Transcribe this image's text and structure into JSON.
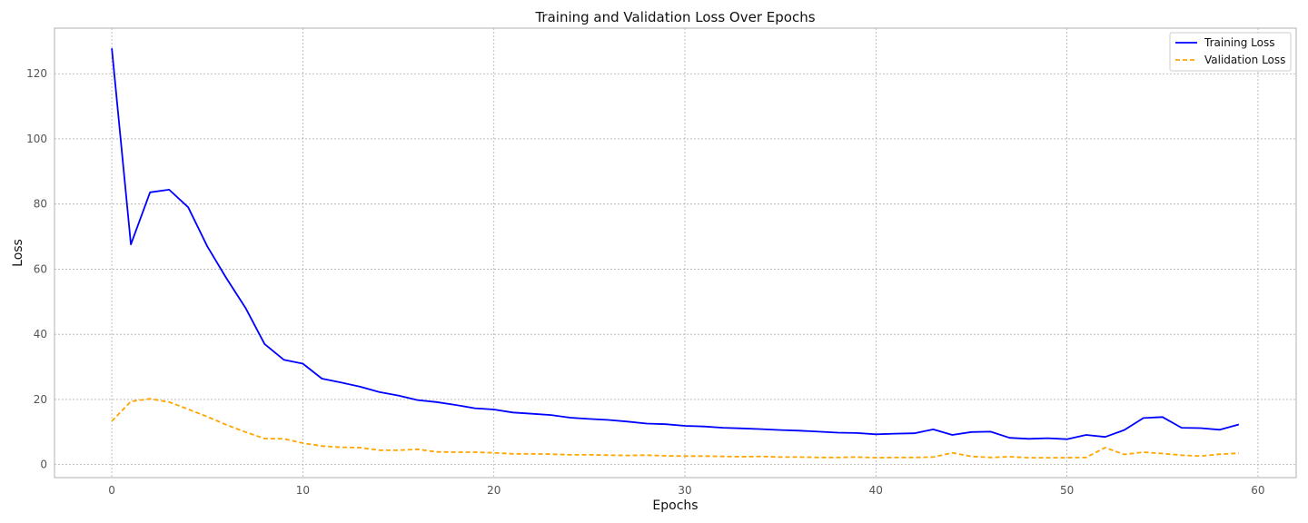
{
  "chart_data": {
    "type": "line",
    "title": "Training and Validation Loss Over Epochs",
    "xlabel": "Epochs",
    "ylabel": "Loss",
    "xlim": [
      -3,
      62
    ],
    "ylim": [
      -4,
      134
    ],
    "xticks": [
      0,
      10,
      20,
      30,
      40,
      50,
      60
    ],
    "yticks": [
      0,
      20,
      40,
      60,
      80,
      100,
      120
    ],
    "grid": true,
    "legend_position": "top-right",
    "x": [
      0,
      1,
      2,
      3,
      4,
      5,
      6,
      7,
      8,
      9,
      10,
      11,
      12,
      13,
      14,
      15,
      16,
      17,
      18,
      19,
      20,
      21,
      22,
      23,
      24,
      25,
      26,
      27,
      28,
      29,
      30,
      31,
      32,
      33,
      34,
      35,
      36,
      37,
      38,
      39,
      40,
      41,
      42,
      43,
      44,
      45,
      46,
      47,
      48,
      49,
      50,
      51,
      52,
      53,
      54,
      55,
      56,
      57,
      58,
      59
    ],
    "series": [
      {
        "name": "Training Loss",
        "color": "#0000ff",
        "style": "solid",
        "values": [
          127.8,
          67.6,
          83.6,
          84.4,
          79.0,
          67.0,
          57.2,
          48.1,
          37.0,
          32.2,
          31.0,
          26.4,
          25.2,
          23.9,
          22.3,
          21.2,
          19.8,
          19.2,
          18.3,
          17.3,
          16.9,
          16.0,
          15.6,
          15.2,
          14.4,
          14.0,
          13.7,
          13.2,
          12.6,
          12.4,
          11.9,
          11.7,
          11.3,
          11.1,
          10.9,
          10.6,
          10.4,
          10.1,
          9.8,
          9.7,
          9.3,
          9.5,
          9.6,
          10.8,
          9.1,
          10.0,
          10.1,
          8.2,
          7.9,
          8.1,
          7.8,
          9.1,
          8.5,
          10.6,
          14.3,
          14.6,
          11.3,
          11.2,
          10.7,
          12.3
        ]
      },
      {
        "name": "Validation Loss",
        "color": "#ffa500",
        "style": "dashed",
        "values": [
          13.3,
          19.4,
          20.2,
          19.2,
          17.0,
          14.7,
          12.2,
          10.0,
          8.0,
          7.9,
          6.6,
          5.7,
          5.3,
          5.2,
          4.4,
          4.4,
          4.7,
          3.9,
          3.8,
          3.8,
          3.6,
          3.3,
          3.3,
          3.2,
          3.0,
          3.0,
          2.9,
          2.8,
          2.9,
          2.7,
          2.6,
          2.6,
          2.5,
          2.4,
          2.5,
          2.3,
          2.3,
          2.2,
          2.2,
          2.3,
          2.1,
          2.2,
          2.2,
          2.3,
          3.6,
          2.5,
          2.2,
          2.4,
          2.1,
          2.1,
          2.1,
          2.2,
          5.2,
          3.1,
          3.8,
          3.4,
          2.9,
          2.6,
          3.2,
          3.5
        ]
      }
    ]
  }
}
